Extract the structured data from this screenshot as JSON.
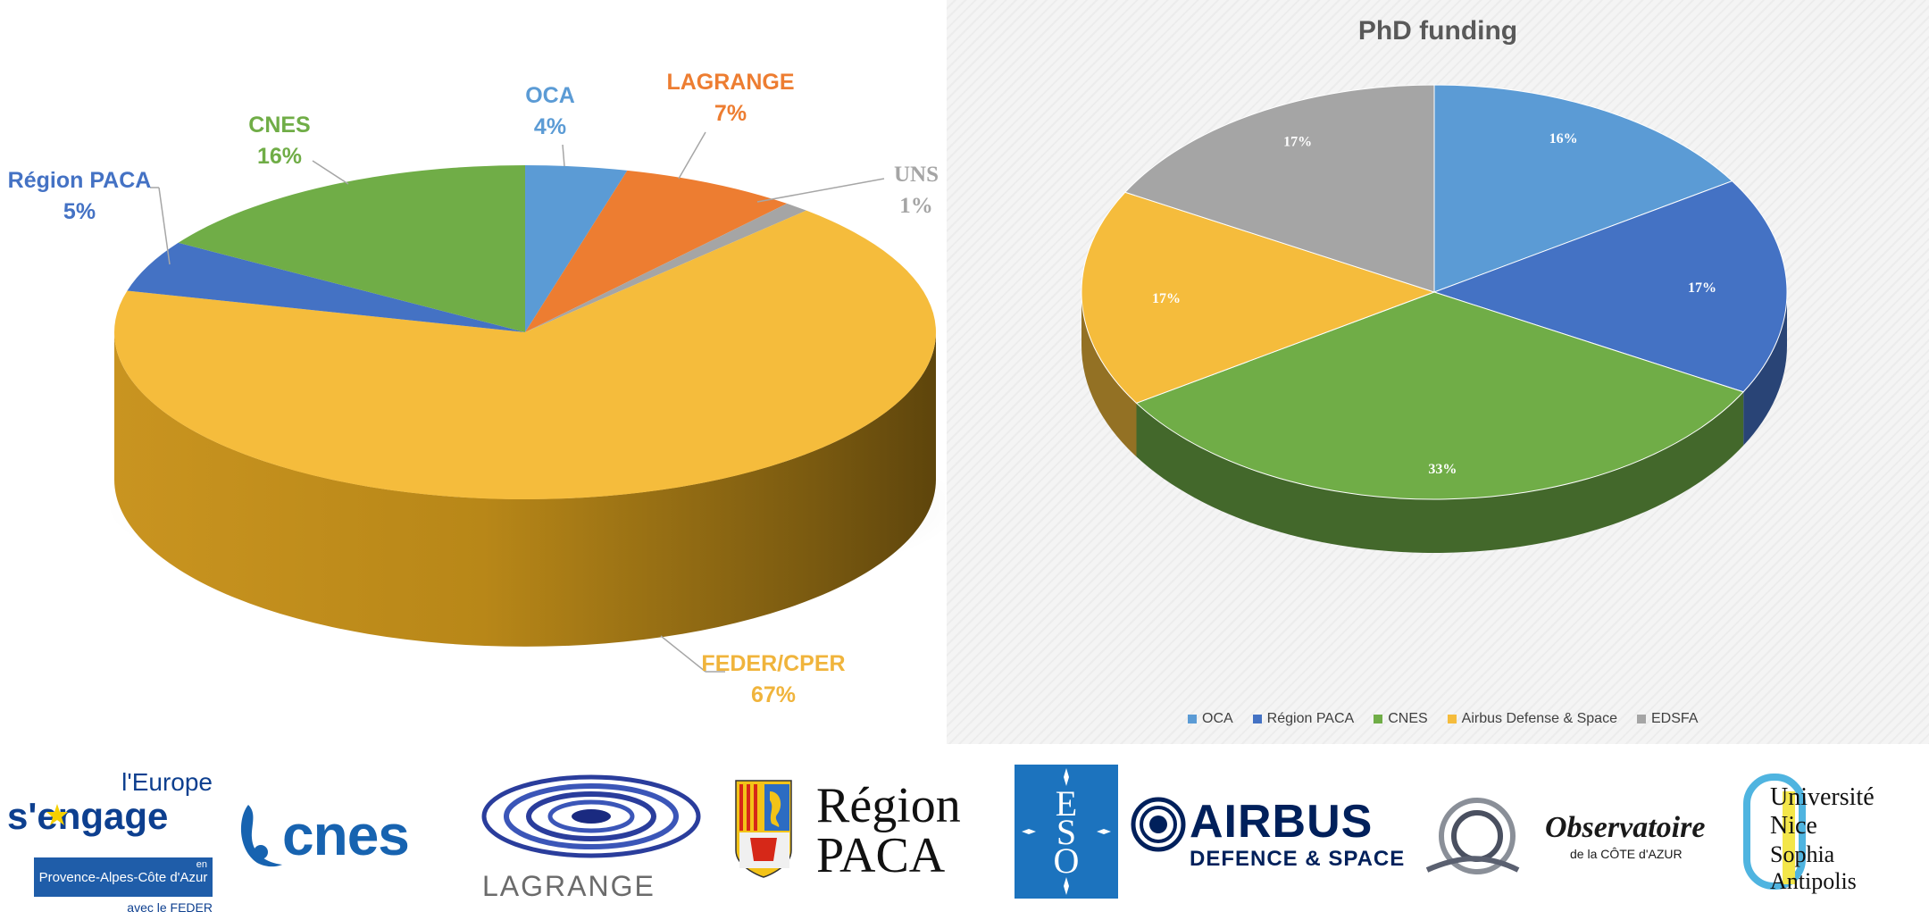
{
  "chart_data": [
    {
      "type": "pie",
      "title": "",
      "slices": [
        {
          "label": "OCA",
          "value": 4,
          "percent_label": "4%",
          "color": "#5b9bd5"
        },
        {
          "label": "LAGRANGE",
          "value": 7,
          "percent_label": "7%",
          "color": "#ed7d31"
        },
        {
          "label": "UNS",
          "value": 1,
          "percent_label": "1%",
          "color": "#a5a5a5"
        },
        {
          "label": "FEDER/CPER",
          "value": 67,
          "percent_label": "67%",
          "color": "#f5bc3c"
        },
        {
          "label": "Région PACA",
          "value": 5,
          "percent_label": "5%",
          "color": "#4472c4"
        },
        {
          "label": "CNES",
          "value": 16,
          "percent_label": "16%",
          "color": "#70ad47"
        }
      ],
      "style": "3d"
    },
    {
      "type": "pie",
      "title": "PhD funding",
      "slices": [
        {
          "label": "OCA",
          "value": 16,
          "percent_label": "16%",
          "color": "#5b9bd5"
        },
        {
          "label": "Région PACA",
          "value": 17,
          "percent_label": "17%",
          "color": "#4472c4"
        },
        {
          "label": "CNES",
          "value": 33,
          "percent_label": "33%",
          "color": "#70ad47"
        },
        {
          "label": "Airbus Defense & Space",
          "value": 17,
          "percent_label": "17%",
          "color": "#f5bc3c"
        },
        {
          "label": "EDSFA",
          "value": 17,
          "percent_label": "17%",
          "color": "#a5a5a5"
        }
      ],
      "legend_position": "bottom",
      "style": "3d"
    }
  ],
  "logos": {
    "europe": {
      "line1": "l'Europe",
      "line2": "s'engage",
      "line3": "en",
      "line4": "Provence-Alpes-Côte d'Azur",
      "line5": "avec le FEDER"
    },
    "cnes": {
      "text": "cnes"
    },
    "lagrange": {
      "text": "LAGRANGE"
    },
    "region": {
      "line1": "Région",
      "line2": "PACA"
    },
    "eso": {
      "text": "ESO"
    },
    "airbus": {
      "line1": "AIRBUS",
      "line2": "DEFENCE & SPACE"
    },
    "observatoire": {
      "line1": "Observatoire",
      "line2": "de la CÔTE d'AZUR"
    },
    "universite": {
      "line1": "Université",
      "line2": "Nice",
      "line3": "Sophia Antipolis"
    }
  }
}
